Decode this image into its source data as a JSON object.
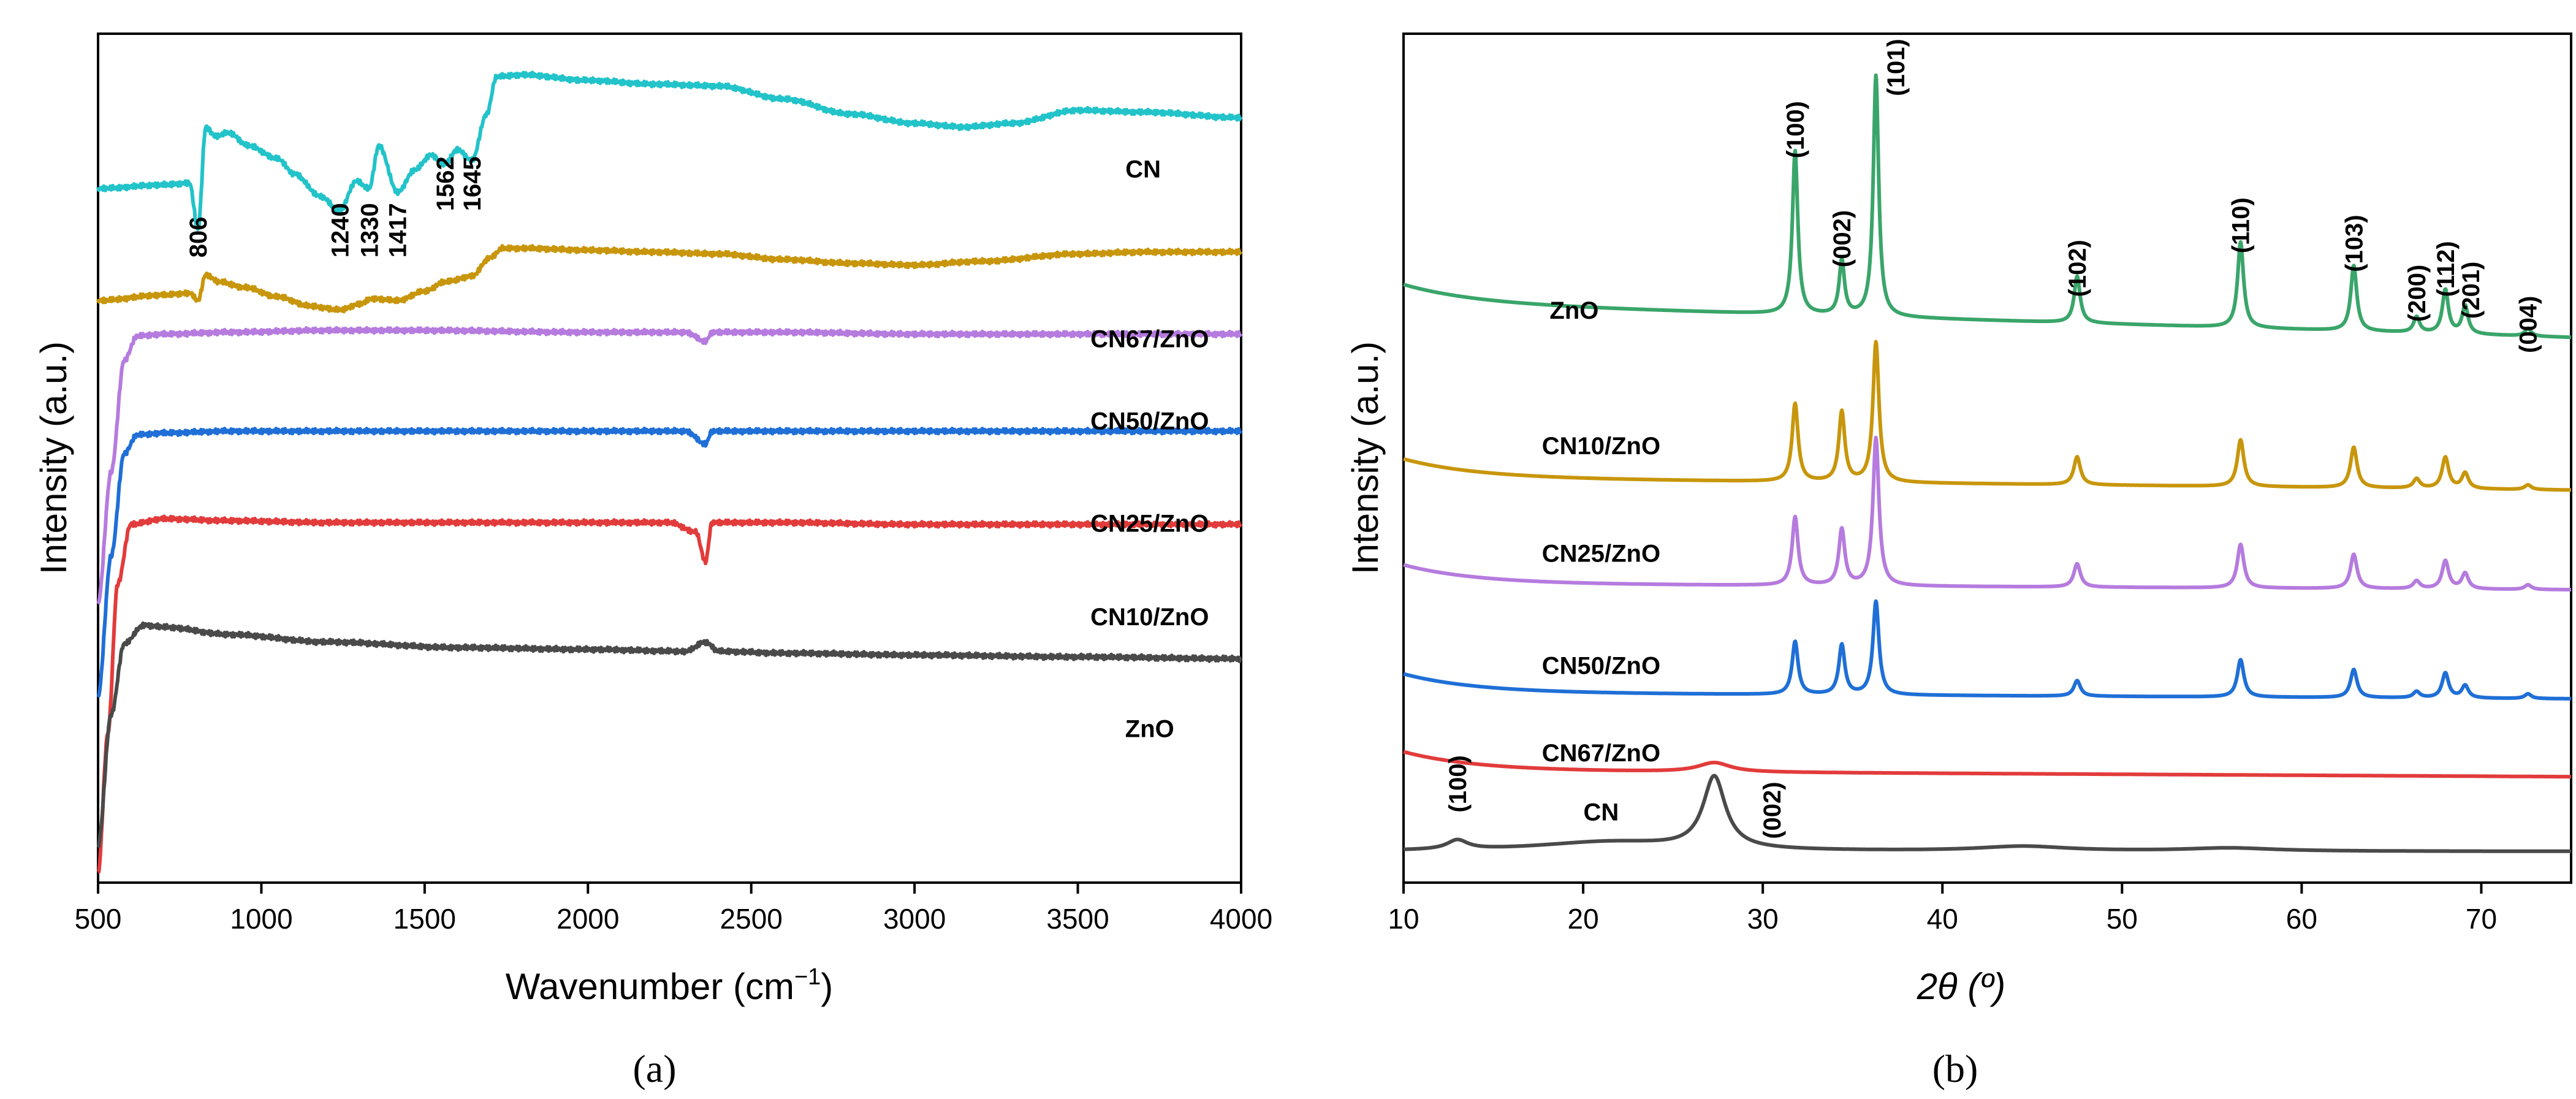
{
  "chart_data": [
    {
      "id": "a",
      "type": "line",
      "panel_label": "(a)",
      "xlabel": "Wavenumber (cm",
      "xlabel_superscript": "−1",
      "xlabel_suffix": ")",
      "ylabel": "Intensity (a.u.)",
      "xlim": [
        500,
        4000
      ],
      "xticks": [
        500,
        1000,
        1500,
        2000,
        2500,
        3000,
        3500,
        4000
      ],
      "y_ticks_shown": false,
      "series": [
        {
          "name": "CN",
          "color": "#22c3c9",
          "label_at": [
            3700,
            3.78
          ],
          "points": [
            [
              500,
              3.72
            ],
            [
              700,
              3.74
            ],
            [
              780,
              3.75
            ],
            [
              806,
              3.5
            ],
            [
              830,
              4.05
            ],
            [
              860,
              4.0
            ],
            [
              900,
              4.02
            ],
            [
              960,
              3.95
            ],
            [
              1050,
              3.88
            ],
            [
              1100,
              3.8
            ],
            [
              1180,
              3.68
            ],
            [
              1240,
              3.6
            ],
            [
              1290,
              3.76
            ],
            [
              1330,
              3.72
            ],
            [
              1360,
              3.95
            ],
            [
              1417,
              3.7
            ],
            [
              1470,
              3.82
            ],
            [
              1520,
              3.9
            ],
            [
              1562,
              3.85
            ],
            [
              1600,
              3.93
            ],
            [
              1645,
              3.87
            ],
            [
              1690,
              4.12
            ],
            [
              1720,
              4.32
            ],
            [
              1800,
              4.33
            ],
            [
              2000,
              4.3
            ],
            [
              2200,
              4.28
            ],
            [
              2400,
              4.27
            ],
            [
              2600,
              4.2
            ],
            [
              2800,
              4.12
            ],
            [
              3000,
              4.07
            ],
            [
              3150,
              4.05
            ],
            [
              3300,
              4.07
            ],
            [
              3500,
              4.14
            ],
            [
              3700,
              4.13
            ],
            [
              4000,
              4.1
            ]
          ]
        },
        {
          "name": "CN67/ZnO",
          "color": "#c8960c",
          "label_at": [
            3720,
            2.87
          ],
          "points": [
            [
              500,
              3.12
            ],
            [
              700,
              3.15
            ],
            [
              780,
              3.16
            ],
            [
              806,
              3.12
            ],
            [
              830,
              3.26
            ],
            [
              870,
              3.22
            ],
            [
              950,
              3.19
            ],
            [
              1050,
              3.14
            ],
            [
              1150,
              3.09
            ],
            [
              1240,
              3.07
            ],
            [
              1300,
              3.1
            ],
            [
              1340,
              3.13
            ],
            [
              1417,
              3.12
            ],
            [
              1500,
              3.17
            ],
            [
              1562,
              3.22
            ],
            [
              1645,
              3.25
            ],
            [
              1700,
              3.35
            ],
            [
              1740,
              3.4
            ],
            [
              1800,
              3.4
            ],
            [
              2000,
              3.39
            ],
            [
              2200,
              3.38
            ],
            [
              2400,
              3.37
            ],
            [
              2600,
              3.34
            ],
            [
              2800,
              3.32
            ],
            [
              3000,
              3.31
            ],
            [
              3200,
              3.33
            ],
            [
              3500,
              3.37
            ],
            [
              3700,
              3.38
            ],
            [
              4000,
              3.38
            ]
          ]
        },
        {
          "name": "CN50/ZnO",
          "color": "#b57bde",
          "label_at": [
            3720,
            2.43
          ],
          "points": [
            [
              500,
              1.5
            ],
            [
              540,
              2.2
            ],
            [
              580,
              2.8
            ],
            [
              620,
              2.93
            ],
            [
              700,
              2.94
            ],
            [
              900,
              2.95
            ],
            [
              1200,
              2.96
            ],
            [
              1500,
              2.96
            ],
            [
              2000,
              2.95
            ],
            [
              2300,
              2.95
            ],
            [
              2360,
              2.9
            ],
            [
              2380,
              2.95
            ],
            [
              2600,
              2.95
            ],
            [
              3000,
              2.94
            ],
            [
              3500,
              2.94
            ],
            [
              4000,
              2.94
            ]
          ]
        },
        {
          "name": "CN25/ZnO",
          "color": "#1f6fd6",
          "label_at": [
            3720,
            1.88
          ],
          "points": [
            [
              500,
              1.0
            ],
            [
              540,
              1.75
            ],
            [
              580,
              2.3
            ],
            [
              620,
              2.4
            ],
            [
              700,
              2.41
            ],
            [
              900,
              2.42
            ],
            [
              1200,
              2.42
            ],
            [
              1500,
              2.42
            ],
            [
              2000,
              2.42
            ],
            [
              2300,
              2.42
            ],
            [
              2360,
              2.35
            ],
            [
              2380,
              2.42
            ],
            [
              2600,
              2.42
            ],
            [
              3000,
              2.42
            ],
            [
              3500,
              2.42
            ],
            [
              4000,
              2.42
            ]
          ]
        },
        {
          "name": "CN10/ZnO",
          "color": "#e23b3b",
          "label_at": [
            3720,
            1.38
          ],
          "points": [
            [
              500,
              0.05
            ],
            [
              530,
              0.8
            ],
            [
              560,
              1.6
            ],
            [
              600,
              1.92
            ],
            [
              700,
              1.95
            ],
            [
              900,
              1.94
            ],
            [
              1200,
              1.93
            ],
            [
              1600,
              1.93
            ],
            [
              2000,
              1.93
            ],
            [
              2250,
              1.93
            ],
            [
              2330,
              1.88
            ],
            [
              2360,
              1.72
            ],
            [
              2380,
              1.93
            ],
            [
              2600,
              1.93
            ],
            [
              3000,
              1.92
            ],
            [
              3500,
              1.92
            ],
            [
              4000,
              1.92
            ]
          ]
        },
        {
          "name": "ZnO",
          "color": "#4a4a4a",
          "label_at": [
            3720,
            0.78
          ],
          "points": [
            [
              500,
              0.2
            ],
            [
              540,
              0.9
            ],
            [
              580,
              1.28
            ],
            [
              640,
              1.38
            ],
            [
              700,
              1.37
            ],
            [
              900,
              1.33
            ],
            [
              1200,
              1.29
            ],
            [
              1600,
              1.26
            ],
            [
              2000,
              1.25
            ],
            [
              2300,
              1.24
            ],
            [
              2360,
              1.29
            ],
            [
              2400,
              1.24
            ],
            [
              2600,
              1.23
            ],
            [
              3000,
              1.22
            ],
            [
              3500,
              1.21
            ],
            [
              4000,
              1.2
            ]
          ]
        }
      ],
      "annotations": [
        {
          "text": "806",
          "x": 806,
          "y": 3.35
        },
        {
          "text": "1240",
          "x": 1240,
          "y": 3.35
        },
        {
          "text": "1330",
          "x": 1330,
          "y": 3.35
        },
        {
          "text": "1417",
          "x": 1417,
          "y": 3.35
        },
        {
          "text": "1562",
          "x": 1562,
          "y": 3.6
        },
        {
          "text": "1645",
          "x": 1645,
          "y": 3.6
        }
      ]
    },
    {
      "id": "b",
      "type": "line",
      "panel_label": "(b)",
      "xlabel": "2θ (º)",
      "ylabel": "Intensity (a.u.)",
      "xlim": [
        10,
        75
      ],
      "xticks": [
        10,
        20,
        30,
        40,
        50,
        60,
        70
      ],
      "y_ticks_shown": false,
      "series": [
        {
          "name": "ZnO",
          "color": "#3aa56a",
          "label_at": [
            19.5,
            3.92
          ],
          "baseline": [
            4.02,
            3.8
          ],
          "peaks": [
            [
              31.8,
              1.05,
              0.18
            ],
            [
              34.4,
              0.35,
              0.18
            ],
            [
              36.3,
              1.55,
              0.18
            ],
            [
              47.5,
              0.3,
              0.2
            ],
            [
              56.6,
              0.55,
              0.2
            ],
            [
              62.9,
              0.42,
              0.2
            ],
            [
              66.4,
              0.1,
              0.2
            ],
            [
              68.0,
              0.28,
              0.2
            ],
            [
              69.1,
              0.18,
              0.2
            ],
            [
              72.6,
              0.05,
              0.2
            ]
          ]
        },
        {
          "name": "CN10/ZnO",
          "color": "#c8960c",
          "label_at": [
            21.0,
            3.05
          ],
          "baseline": [
            2.9,
            2.82
          ],
          "peaks": [
            [
              31.8,
              0.5,
              0.2
            ],
            [
              34.4,
              0.45,
              0.2
            ],
            [
              36.3,
              0.9,
              0.2
            ],
            [
              47.5,
              0.18,
              0.22
            ],
            [
              56.6,
              0.3,
              0.22
            ],
            [
              62.9,
              0.26,
              0.22
            ],
            [
              66.4,
              0.06,
              0.22
            ],
            [
              68.0,
              0.2,
              0.22
            ],
            [
              69.1,
              0.1,
              0.22
            ],
            [
              72.6,
              0.03,
              0.22
            ]
          ]
        },
        {
          "name": "CN25/ZnO",
          "color": "#b57bde",
          "label_at": [
            21.0,
            2.36
          ],
          "baseline": [
            2.22,
            2.18
          ],
          "peaks": [
            [
              31.8,
              0.44,
              0.2
            ],
            [
              34.4,
              0.36,
              0.2
            ],
            [
              36.3,
              0.95,
              0.2
            ],
            [
              47.5,
              0.15,
              0.22
            ],
            [
              56.6,
              0.28,
              0.22
            ],
            [
              62.9,
              0.22,
              0.22
            ],
            [
              66.4,
              0.05,
              0.22
            ],
            [
              68.0,
              0.18,
              0.22
            ],
            [
              69.1,
              0.1,
              0.22
            ],
            [
              72.6,
              0.03,
              0.22
            ]
          ]
        },
        {
          "name": "CN50/ZnO",
          "color": "#1f6fd6",
          "label_at": [
            21.0,
            1.64
          ],
          "baseline": [
            1.52,
            1.48
          ],
          "peaks": [
            [
              31.8,
              0.34,
              0.2
            ],
            [
              34.4,
              0.32,
              0.2
            ],
            [
              36.3,
              0.6,
              0.2
            ],
            [
              47.5,
              0.1,
              0.22
            ],
            [
              56.6,
              0.24,
              0.22
            ],
            [
              62.9,
              0.18,
              0.22
            ],
            [
              66.4,
              0.04,
              0.22
            ],
            [
              68.0,
              0.16,
              0.22
            ],
            [
              69.1,
              0.08,
              0.22
            ],
            [
              72.6,
              0.03,
              0.22
            ]
          ]
        },
        {
          "name": "CN67/ZnO",
          "color": "#e23b3b",
          "label_at": [
            21.0,
            1.08
          ],
          "baseline": [
            1.02,
            0.98
          ],
          "peaks": [
            [
              27.3,
              0.06,
              1.1
            ]
          ]
        },
        {
          "name": "CN",
          "color": "#4a4a4a",
          "label_at": [
            21.0,
            0.7
          ],
          "baseline": [
            0.5,
            0.5
          ],
          "peaks": [
            [
              13.0,
              0.06,
              0.7
            ],
            [
              21.5,
              0.06,
              5.0
            ],
            [
              27.3,
              0.46,
              0.75
            ],
            [
              44.5,
              0.03,
              3.0
            ],
            [
              56.0,
              0.02,
              3.0
            ]
          ]
        }
      ],
      "annotations": [
        {
          "text": "(100)",
          "x": 31.8,
          "y": 4.95
        },
        {
          "text": "(002)",
          "x": 34.4,
          "y": 4.25
        },
        {
          "text": "(101)",
          "x": 37.4,
          "y": 5.35
        },
        {
          "text": "(102)",
          "x": 47.5,
          "y": 4.06
        },
        {
          "text": "(110)",
          "x": 56.6,
          "y": 4.34
        },
        {
          "text": "(103)",
          "x": 62.9,
          "y": 4.22
        },
        {
          "text": "(200)",
          "x": 66.4,
          "y": 3.9
        },
        {
          "text": "(112)",
          "x": 68.0,
          "y": 4.06
        },
        {
          "text": "(201)",
          "x": 69.4,
          "y": 3.92
        },
        {
          "text": "(004)",
          "x": 72.6,
          "y": 3.7
        },
        {
          "text": "(100)",
          "x": 13.0,
          "y": 0.75
        },
        {
          "text": "(002)",
          "x": 30.5,
          "y": 0.58
        }
      ]
    }
  ]
}
